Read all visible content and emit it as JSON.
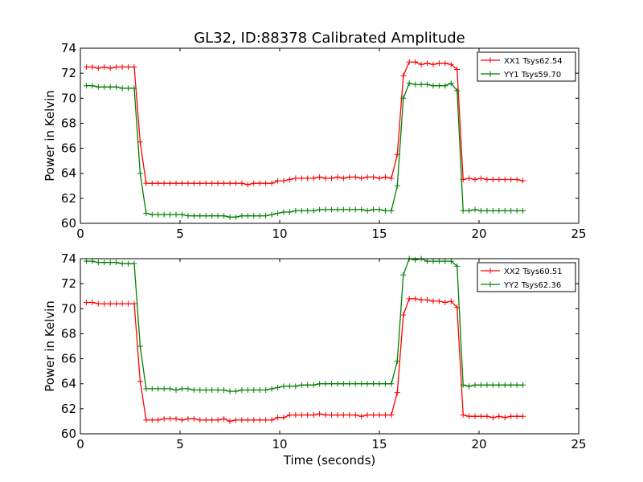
{
  "title": "GL32, ID:88378 Calibrated Amplitude",
  "xlabel": "Time (seconds)",
  "colors": {
    "red": "#ff0000",
    "green": "#008000"
  },
  "chart_data": [
    {
      "type": "line",
      "title": "GL32, ID:88378 Calibrated Amplitude",
      "xlabel": "",
      "ylabel": "Power in Kelvin",
      "xlim": [
        0,
        25
      ],
      "ylim": [
        60,
        74
      ],
      "xticks": [
        0,
        5,
        10,
        15,
        20,
        25
      ],
      "yticks": [
        60,
        62,
        64,
        66,
        68,
        70,
        72,
        74
      ],
      "grid": false,
      "legend": "top-right",
      "x": [
        0.3,
        0.6,
        0.9,
        1.2,
        1.5,
        1.8,
        2.1,
        2.4,
        2.7,
        3.0,
        3.3,
        3.6,
        3.9,
        4.2,
        4.5,
        4.8,
        5.1,
        5.4,
        5.7,
        6.0,
        6.3,
        6.6,
        6.9,
        7.2,
        7.5,
        7.8,
        8.1,
        8.4,
        8.7,
        9.0,
        9.3,
        9.6,
        9.9,
        10.2,
        10.5,
        10.8,
        11.1,
        11.4,
        11.7,
        12.0,
        12.3,
        12.6,
        12.9,
        13.2,
        13.5,
        13.8,
        14.1,
        14.4,
        14.7,
        15.0,
        15.3,
        15.6,
        15.9,
        16.2,
        16.5,
        16.8,
        17.1,
        17.4,
        17.7,
        18.0,
        18.3,
        18.6,
        18.9,
        19.2,
        19.5,
        19.8,
        20.1,
        20.4,
        20.7,
        21.0,
        21.3,
        21.6,
        21.9,
        22.2
      ],
      "series": [
        {
          "name": "XX1 Tsys62.54",
          "color": "#ff0000",
          "values": [
            72.5,
            72.5,
            72.4,
            72.5,
            72.4,
            72.5,
            72.5,
            72.5,
            72.5,
            66.5,
            63.2,
            63.2,
            63.2,
            63.2,
            63.2,
            63.2,
            63.2,
            63.2,
            63.2,
            63.2,
            63.2,
            63.2,
            63.2,
            63.2,
            63.2,
            63.2,
            63.2,
            63.1,
            63.2,
            63.2,
            63.2,
            63.2,
            63.4,
            63.4,
            63.5,
            63.6,
            63.6,
            63.6,
            63.6,
            63.7,
            63.6,
            63.6,
            63.7,
            63.6,
            63.7,
            63.7,
            63.6,
            63.7,
            63.7,
            63.6,
            63.7,
            63.6,
            65.5,
            71.8,
            72.9,
            72.9,
            72.7,
            72.8,
            72.7,
            72.8,
            72.8,
            72.7,
            72.3,
            63.5,
            63.6,
            63.5,
            63.6,
            63.5,
            63.5,
            63.5,
            63.5,
            63.5,
            63.5,
            63.4
          ]
        },
        {
          "name": "YY1 Tsys59.70",
          "color": "#008000",
          "values": [
            71.0,
            71.0,
            70.9,
            70.9,
            70.9,
            70.9,
            70.8,
            70.8,
            70.8,
            64.0,
            60.8,
            60.7,
            60.7,
            60.7,
            60.7,
            60.7,
            60.7,
            60.6,
            60.6,
            60.6,
            60.6,
            60.6,
            60.6,
            60.6,
            60.5,
            60.5,
            60.6,
            60.6,
            60.6,
            60.6,
            60.6,
            60.7,
            60.8,
            60.9,
            60.9,
            61.0,
            61.0,
            61.0,
            61.0,
            61.1,
            61.1,
            61.1,
            61.1,
            61.1,
            61.1,
            61.1,
            61.1,
            61.0,
            61.1,
            61.1,
            61.0,
            61.0,
            63.0,
            70.0,
            71.2,
            71.1,
            71.1,
            71.1,
            71.0,
            71.0,
            71.0,
            71.2,
            70.6,
            61.0,
            61.0,
            61.1,
            61.0,
            61.0,
            61.0,
            61.0,
            61.0,
            61.0,
            61.0,
            61.0
          ]
        }
      ]
    },
    {
      "type": "line",
      "title": "",
      "xlabel": "Time (seconds)",
      "ylabel": "Power in Kelvin",
      "xlim": [
        0,
        25
      ],
      "ylim": [
        60,
        74
      ],
      "xticks": [
        0,
        5,
        10,
        15,
        20,
        25
      ],
      "yticks": [
        60,
        62,
        64,
        66,
        68,
        70,
        72,
        74
      ],
      "grid": false,
      "legend": "top-right",
      "x": [
        0.3,
        0.6,
        0.9,
        1.2,
        1.5,
        1.8,
        2.1,
        2.4,
        2.7,
        3.0,
        3.3,
        3.6,
        3.9,
        4.2,
        4.5,
        4.8,
        5.1,
        5.4,
        5.7,
        6.0,
        6.3,
        6.6,
        6.9,
        7.2,
        7.5,
        7.8,
        8.1,
        8.4,
        8.7,
        9.0,
        9.3,
        9.6,
        9.9,
        10.2,
        10.5,
        10.8,
        11.1,
        11.4,
        11.7,
        12.0,
        12.3,
        12.6,
        12.9,
        13.2,
        13.5,
        13.8,
        14.1,
        14.4,
        14.7,
        15.0,
        15.3,
        15.6,
        15.9,
        16.2,
        16.5,
        16.8,
        17.1,
        17.4,
        17.7,
        18.0,
        18.3,
        18.6,
        18.9,
        19.2,
        19.5,
        19.8,
        20.1,
        20.4,
        20.7,
        21.0,
        21.3,
        21.6,
        21.9,
        22.2
      ],
      "series": [
        {
          "name": "XX2 Tsys60.51",
          "color": "#ff0000",
          "values": [
            70.5,
            70.5,
            70.4,
            70.4,
            70.4,
            70.4,
            70.4,
            70.4,
            70.4,
            64.2,
            61.1,
            61.1,
            61.1,
            61.2,
            61.2,
            61.2,
            61.1,
            61.2,
            61.2,
            61.1,
            61.1,
            61.1,
            61.1,
            61.2,
            61.0,
            61.1,
            61.1,
            61.1,
            61.1,
            61.1,
            61.1,
            61.1,
            61.3,
            61.3,
            61.5,
            61.5,
            61.5,
            61.5,
            61.5,
            61.6,
            61.5,
            61.5,
            61.5,
            61.5,
            61.5,
            61.5,
            61.4,
            61.5,
            61.5,
            61.5,
            61.5,
            61.5,
            63.3,
            69.5,
            70.8,
            70.8,
            70.7,
            70.7,
            70.6,
            70.6,
            70.5,
            70.6,
            70.1,
            61.5,
            61.4,
            61.4,
            61.4,
            61.4,
            61.3,
            61.4,
            61.3,
            61.4,
            61.4,
            61.4
          ]
        },
        {
          "name": "YY2 Tsys62.36",
          "color": "#008000",
          "values": [
            73.8,
            73.8,
            73.7,
            73.7,
            73.7,
            73.7,
            73.6,
            73.6,
            73.6,
            67.0,
            63.6,
            63.6,
            63.6,
            63.6,
            63.6,
            63.5,
            63.6,
            63.6,
            63.5,
            63.5,
            63.5,
            63.5,
            63.5,
            63.5,
            63.4,
            63.4,
            63.5,
            63.5,
            63.5,
            63.5,
            63.5,
            63.6,
            63.7,
            63.8,
            63.8,
            63.8,
            63.9,
            63.9,
            63.9,
            64.0,
            64.0,
            64.0,
            64.0,
            64.0,
            64.0,
            64.0,
            64.0,
            64.0,
            64.0,
            64.0,
            64.0,
            64.0,
            65.8,
            72.7,
            74.0,
            73.9,
            74.0,
            73.8,
            73.8,
            73.8,
            73.8,
            73.8,
            73.4,
            63.9,
            63.8,
            63.9,
            63.9,
            63.9,
            63.9,
            63.9,
            63.9,
            63.9,
            63.9,
            63.9
          ]
        }
      ]
    }
  ]
}
